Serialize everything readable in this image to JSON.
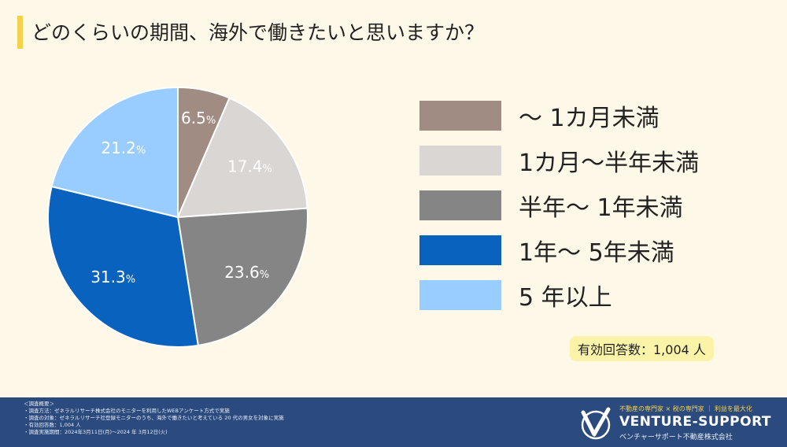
{
  "title": "どのくらいの期間、海外で働きたいと思いますか？",
  "chart_data": {
    "type": "pie",
    "categories": [
      "～ 1カ月未満",
      "1カ月～半年未満",
      "半年～ 1年未満",
      "1年～ 5年未満",
      "5 年以上"
    ],
    "values": [
      6.5,
      17.4,
      23.6,
      31.3,
      21.2
    ],
    "value_labels": [
      "6.5",
      "17.4",
      "23.6",
      "31.3",
      "21.2"
    ],
    "unit": "%",
    "colors": [
      "#a08c83",
      "#d9d6d3",
      "#858585",
      "#0a62bf",
      "#99ccff"
    ],
    "start_angle": "12 o'clock",
    "direction": "clockwise",
    "legend_position": "right"
  },
  "respondents": "有効回答数：1,004 人",
  "survey": {
    "heading": "＜調査概要＞",
    "lines": [
      "・調査方法：ゼネラルリサーチ株式会社のモニターを利用したWEBアンケート方式で実施",
      "・調査の対象：ゼネラルリサーチ社登録モニターのうち、海外で働きたいと考えている 20 代の男女を対象に実施",
      "・有効回答数：1,004 人",
      "・調査実施期間：2024年3月11日(月)～2024 年 3月12日(火)"
    ]
  },
  "brand": {
    "tagline": "不動産の専門家 × 税の専門家 ｜ 利益を最大化",
    "name": "VENTURE-SUPPORT",
    "company": "ベンチャーサポート不動産株式会社",
    "logo_icon": "v-check-logo-icon"
  }
}
